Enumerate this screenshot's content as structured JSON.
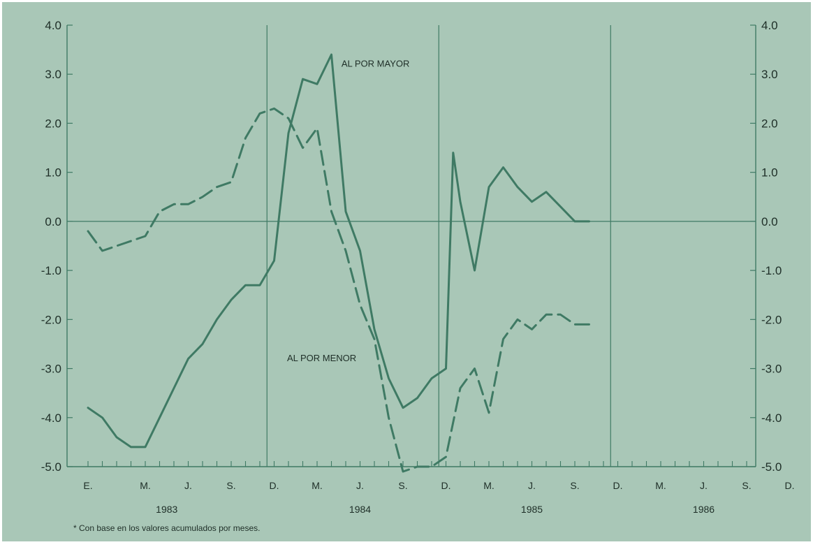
{
  "colors": {
    "background": "#ffffff",
    "panel": "#a9c7b7",
    "line": "#3f7a64",
    "text": "#1e2e27"
  },
  "chart_data": {
    "type": "line",
    "title": "",
    "xlabel": "",
    "ylabel": "",
    "ylim": [
      -5.0,
      4.0
    ],
    "y_ticks": [
      4.0,
      3.0,
      2.0,
      1.0,
      0.0,
      -1.0,
      -2.0,
      -3.0,
      -4.0,
      -5.0
    ],
    "y_tick_labels": [
      "4.0",
      "3.0",
      "2.0",
      "1.0",
      "0.0",
      "-1.0",
      "-2.0",
      "-3.0",
      "-4.0",
      "-5.0"
    ],
    "months": 48,
    "month_tick_labels": [
      {
        "month": 0,
        "label": "E."
      },
      {
        "month": 4,
        "label": "M."
      },
      {
        "month": 7,
        "label": "J."
      },
      {
        "month": 10,
        "label": "S."
      },
      {
        "month": 13,
        "label": "D."
      },
      {
        "month": 16,
        "label": "M."
      },
      {
        "month": 19,
        "label": "J."
      },
      {
        "month": 22,
        "label": "S."
      },
      {
        "month": 25,
        "label": "D."
      },
      {
        "month": 28,
        "label": "M."
      },
      {
        "month": 31,
        "label": "J."
      },
      {
        "month": 34,
        "label": "S."
      },
      {
        "month": 37,
        "label": "D."
      },
      {
        "month": 40,
        "label": "M."
      },
      {
        "month": 43,
        "label": "J."
      },
      {
        "month": 46,
        "label": "S."
      },
      {
        "month": 49,
        "label": "D."
      }
    ],
    "year_labels": [
      {
        "month": 5.5,
        "label": "1983"
      },
      {
        "month": 19,
        "label": "1984"
      },
      {
        "month": 31,
        "label": "1985"
      },
      {
        "month": 43,
        "label": "1986"
      }
    ],
    "year_separators": [
      12.5,
      24.5,
      36.5
    ],
    "series": [
      {
        "name": "AL POR MAYOR",
        "style": "solid",
        "values": [
          [
            0,
            -3.8
          ],
          [
            1,
            -4.0
          ],
          [
            2,
            -4.4
          ],
          [
            3,
            -4.6
          ],
          [
            4,
            -4.6
          ],
          [
            5,
            -4.0
          ],
          [
            6,
            -3.4
          ],
          [
            7,
            -2.8
          ],
          [
            8,
            -2.5
          ],
          [
            9,
            -2.0
          ],
          [
            10,
            -1.6
          ],
          [
            11,
            -1.3
          ],
          [
            12,
            -1.3
          ],
          [
            13,
            -0.8
          ],
          [
            14,
            1.8
          ],
          [
            15,
            2.9
          ],
          [
            16,
            2.8
          ],
          [
            17,
            3.4
          ],
          [
            18,
            0.2
          ],
          [
            19,
            -0.6
          ],
          [
            20,
            -2.2
          ],
          [
            21,
            -3.2
          ],
          [
            22,
            -3.8
          ],
          [
            23,
            -3.6
          ],
          [
            24,
            -3.2
          ],
          [
            25,
            -3.0
          ],
          [
            25.5,
            1.4
          ],
          [
            26,
            0.4
          ],
          [
            27,
            -1.0
          ],
          [
            28,
            0.7
          ],
          [
            29,
            1.1
          ],
          [
            30,
            0.7
          ],
          [
            31,
            0.4
          ],
          [
            32,
            0.6
          ],
          [
            33,
            0.3
          ],
          [
            34,
            0.0
          ],
          [
            35,
            0.0
          ]
        ]
      },
      {
        "name": "AL POR MENOR",
        "style": "dashed",
        "values": [
          [
            0,
            -0.2
          ],
          [
            1,
            -0.6
          ],
          [
            2,
            -0.5
          ],
          [
            3,
            -0.4
          ],
          [
            4,
            -0.3
          ],
          [
            5,
            0.2
          ],
          [
            6,
            0.35
          ],
          [
            7,
            0.35
          ],
          [
            8,
            0.5
          ],
          [
            9,
            0.7
          ],
          [
            10,
            0.8
          ],
          [
            11,
            1.7
          ],
          [
            12,
            2.2
          ],
          [
            13,
            2.3
          ],
          [
            14,
            2.1
          ],
          [
            15,
            1.5
          ],
          [
            16,
            1.9
          ],
          [
            17,
            0.2
          ],
          [
            18,
            -0.6
          ],
          [
            19,
            -1.7
          ],
          [
            20,
            -2.4
          ],
          [
            21,
            -4.0
          ],
          [
            22,
            -5.1
          ],
          [
            23,
            -5.0
          ],
          [
            24,
            -5.0
          ],
          [
            25,
            -4.8
          ],
          [
            26,
            -3.4
          ],
          [
            27,
            -3.0
          ],
          [
            28,
            -3.9
          ],
          [
            29,
            -2.4
          ],
          [
            30,
            -2.0
          ],
          [
            31,
            -2.2
          ],
          [
            32,
            -1.9
          ],
          [
            33,
            -1.9
          ],
          [
            34,
            -2.1
          ],
          [
            35,
            -2.1
          ]
        ]
      }
    ],
    "annotations": [
      {
        "text": "AL POR MAYOR",
        "x": 17.7,
        "y": 3.15
      },
      {
        "text": "AL POR MENOR",
        "x": 13.9,
        "y": -2.85
      }
    ],
    "footnote": "*   Con base en los valores acumulados por meses.",
    "grid": false
  }
}
